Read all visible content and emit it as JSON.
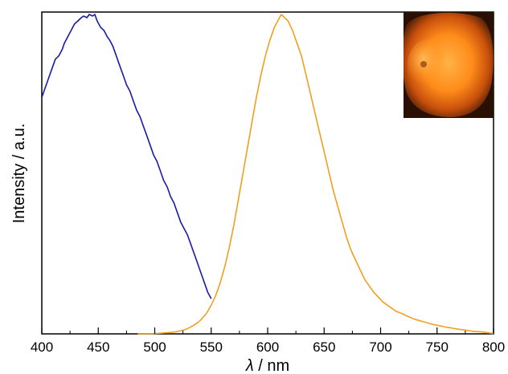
{
  "chart_data": {
    "type": "line",
    "title": "",
    "xlabel_symbol": "λ",
    "xlabel_unit": " / nm",
    "ylabel": "Intensity / a.u.",
    "xlim": [
      400,
      800
    ],
    "ylim": [
      0,
      1
    ],
    "x_ticks": [
      400,
      450,
      500,
      550,
      600,
      650,
      700,
      750,
      800
    ],
    "x_tick_labels": [
      "400",
      "450",
      "500",
      "550",
      "600",
      "650",
      "700",
      "750",
      "800"
    ],
    "grid": false,
    "legend": "none",
    "series": [
      {
        "color": "#1a1aa8",
        "points": [
          [
            400,
            0.74
          ],
          [
            403,
            0.77
          ],
          [
            406,
            0.8
          ],
          [
            409,
            0.83
          ],
          [
            412,
            0.86
          ],
          [
            415,
            0.87
          ],
          [
            418,
            0.89
          ],
          [
            420,
            0.91
          ],
          [
            423,
            0.93
          ],
          [
            426,
            0.95
          ],
          [
            429,
            0.97
          ],
          [
            432,
            0.98
          ],
          [
            435,
            0.99
          ],
          [
            437,
            0.995
          ],
          [
            440,
            0.99
          ],
          [
            442,
            1.0
          ],
          [
            445,
            0.995
          ],
          [
            447,
            1.0
          ],
          [
            449,
            0.98
          ],
          [
            452,
            0.96
          ],
          [
            455,
            0.95
          ],
          [
            458,
            0.93
          ],
          [
            460,
            0.92
          ],
          [
            463,
            0.9
          ],
          [
            466,
            0.87
          ],
          [
            469,
            0.84
          ],
          [
            472,
            0.81
          ],
          [
            475,
            0.78
          ],
          [
            478,
            0.76
          ],
          [
            481,
            0.73
          ],
          [
            484,
            0.7
          ],
          [
            487,
            0.68
          ],
          [
            490,
            0.65
          ],
          [
            493,
            0.62
          ],
          [
            496,
            0.59
          ],
          [
            499,
            0.56
          ],
          [
            502,
            0.54
          ],
          [
            505,
            0.51
          ],
          [
            508,
            0.48
          ],
          [
            511,
            0.46
          ],
          [
            514,
            0.43
          ],
          [
            517,
            0.41
          ],
          [
            520,
            0.38
          ],
          [
            523,
            0.35
          ],
          [
            526,
            0.33
          ],
          [
            529,
            0.31
          ],
          [
            532,
            0.28
          ],
          [
            535,
            0.25
          ],
          [
            538,
            0.22
          ],
          [
            541,
            0.19
          ],
          [
            544,
            0.16
          ],
          [
            547,
            0.13
          ],
          [
            550,
            0.11
          ]
        ]
      },
      {
        "color": "#f0a020",
        "points": [
          [
            485,
            0.0
          ],
          [
            495,
            0.0
          ],
          [
            505,
            0.002
          ],
          [
            512,
            0.004
          ],
          [
            518,
            0.006
          ],
          [
            522,
            0.009
          ],
          [
            526,
            0.012
          ],
          [
            530,
            0.018
          ],
          [
            534,
            0.026
          ],
          [
            538,
            0.035
          ],
          [
            542,
            0.048
          ],
          [
            546,
            0.065
          ],
          [
            550,
            0.09
          ],
          [
            554,
            0.12
          ],
          [
            558,
            0.16
          ],
          [
            562,
            0.21
          ],
          [
            566,
            0.27
          ],
          [
            570,
            0.34
          ],
          [
            574,
            0.42
          ],
          [
            578,
            0.5
          ],
          [
            582,
            0.58
          ],
          [
            586,
            0.66
          ],
          [
            590,
            0.74
          ],
          [
            594,
            0.81
          ],
          [
            598,
            0.87
          ],
          [
            602,
            0.92
          ],
          [
            606,
            0.96
          ],
          [
            609,
            0.98
          ],
          [
            612,
            1.0
          ],
          [
            615,
            0.99
          ],
          [
            618,
            0.98
          ],
          [
            622,
            0.95
          ],
          [
            626,
            0.91
          ],
          [
            630,
            0.87
          ],
          [
            634,
            0.81
          ],
          [
            638,
            0.75
          ],
          [
            642,
            0.69
          ],
          [
            646,
            0.63
          ],
          [
            650,
            0.57
          ],
          [
            654,
            0.51
          ],
          [
            658,
            0.45
          ],
          [
            662,
            0.4
          ],
          [
            666,
            0.35
          ],
          [
            670,
            0.3
          ],
          [
            674,
            0.26
          ],
          [
            678,
            0.23
          ],
          [
            682,
            0.2
          ],
          [
            686,
            0.17
          ],
          [
            690,
            0.15
          ],
          [
            694,
            0.13
          ],
          [
            698,
            0.115
          ],
          [
            702,
            0.1
          ],
          [
            706,
            0.09
          ],
          [
            710,
            0.08
          ],
          [
            714,
            0.07
          ],
          [
            718,
            0.065
          ],
          [
            722,
            0.058
          ],
          [
            726,
            0.052
          ],
          [
            730,
            0.046
          ],
          [
            734,
            0.042
          ],
          [
            738,
            0.038
          ],
          [
            742,
            0.034
          ],
          [
            746,
            0.03
          ],
          [
            750,
            0.027
          ],
          [
            754,
            0.024
          ],
          [
            758,
            0.021
          ],
          [
            762,
            0.019
          ],
          [
            766,
            0.016
          ],
          [
            770,
            0.014
          ],
          [
            774,
            0.012
          ],
          [
            778,
            0.01
          ],
          [
            782,
            0.008
          ],
          [
            786,
            0.007
          ],
          [
            790,
            0.006
          ],
          [
            794,
            0.004
          ],
          [
            798,
            0.002
          ],
          [
            800,
            0.001
          ]
        ]
      }
    ],
    "inset_image": {
      "description_color_main": "#ff8a1a",
      "description_color_edge": "#3a1a08",
      "placement": "top-right"
    }
  }
}
